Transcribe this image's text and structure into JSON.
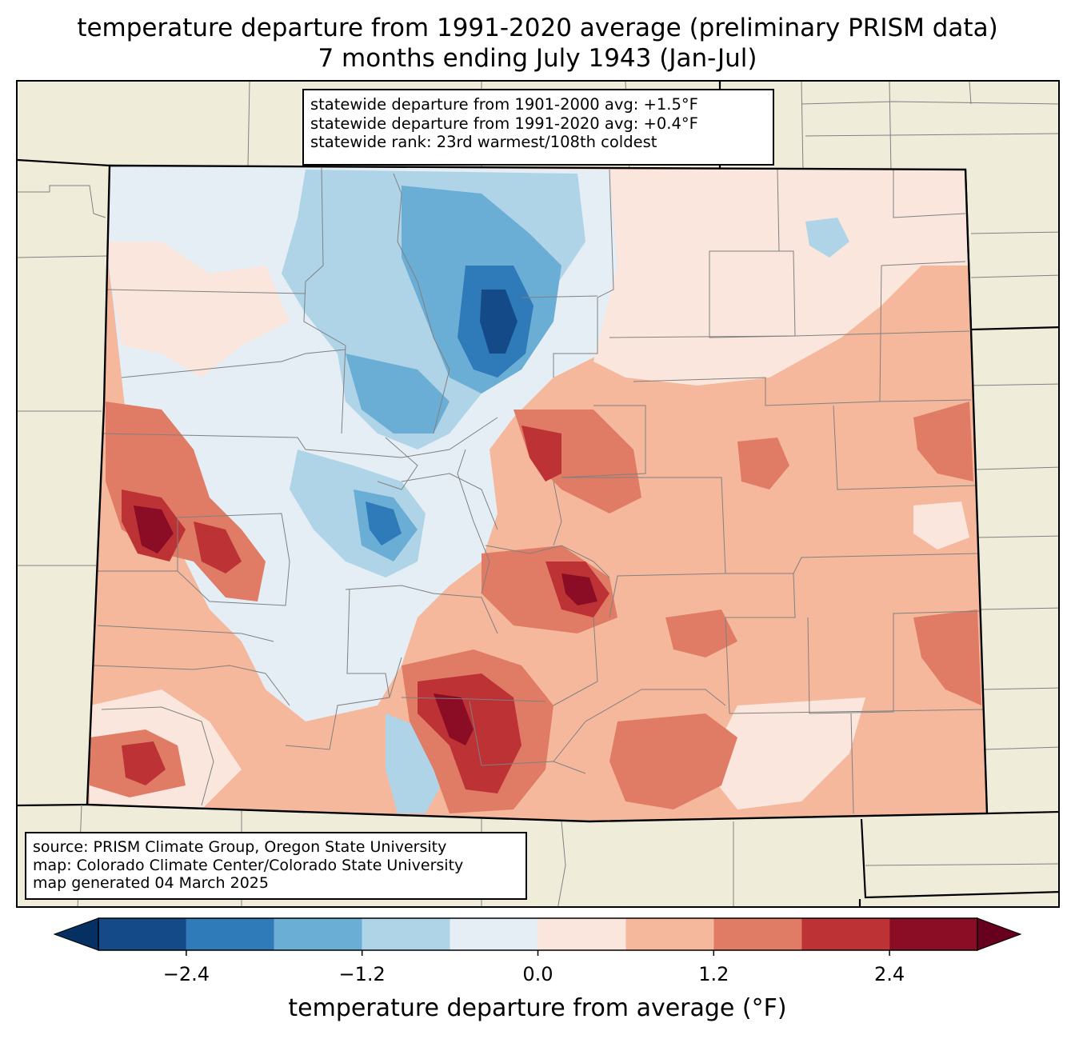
{
  "title": {
    "line1": "temperature departure from 1991-2020 average (preliminary PRISM data)",
    "line2": "7 months ending July 1943 (Jan-Jul)"
  },
  "stats": {
    "line1": "statewide departure from 1901-2000 avg: +1.5°F",
    "line2": "statewide departure from 1991-2020 avg: +0.4°F",
    "line3": "statewide rank: 23rd warmest/108th coldest"
  },
  "source": {
    "line1": "source: PRISM Climate Group, Oregon State University",
    "line2": "map: Colorado Climate Center/Colorado State University",
    "line3": "map generated 04 March 2025"
  },
  "colorbar": {
    "label": "temperature departure from average (°F)",
    "bounds": [
      -3.0,
      -2.4,
      -1.8,
      -1.2,
      -0.6,
      0.0,
      0.6,
      1.2,
      1.8,
      2.4,
      3.0
    ],
    "colors": [
      "#053061",
      "#154a89",
      "#2f7ab9",
      "#6aadd5",
      "#b0d4e7",
      "#e5eef4",
      "#fae6dc",
      "#f5b89c",
      "#e07c65",
      "#bd3235",
      "#8b0c25",
      "#67001f"
    ],
    "ticks": [
      {
        "value": -2.4,
        "label": "−2.4"
      },
      {
        "value": -1.2,
        "label": "−1.2"
      },
      {
        "value": 0.0,
        "label": "0.0"
      },
      {
        "value": 1.2,
        "label": "1.2"
      },
      {
        "value": 2.4,
        "label": "2.4"
      }
    ]
  },
  "colors": {
    "land": "#efedda",
    "state_border": "#000000",
    "county_border": "#808080"
  }
}
